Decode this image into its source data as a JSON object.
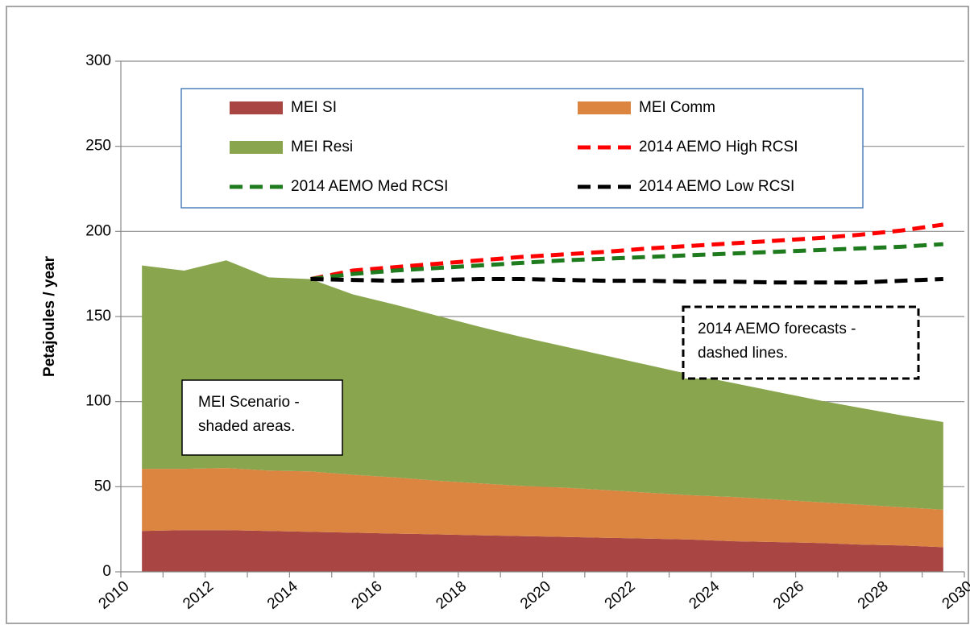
{
  "chart_data": {
    "type": "stacked-area-line",
    "y_label": "Petajoules / year",
    "x": [
      2010.5,
      2011.5,
      2012.5,
      2013.5,
      2014.5,
      2015.5,
      2016.5,
      2017.5,
      2018.5,
      2019.5,
      2020.5,
      2021.5,
      2022.5,
      2023.5,
      2024.5,
      2025.5,
      2026.5,
      2027.5,
      2028.5,
      2029.5
    ],
    "xlim": [
      2010,
      2030
    ],
    "xticks": [
      2010,
      2012,
      2014,
      2016,
      2018,
      2020,
      2022,
      2024,
      2026,
      2028,
      2030
    ],
    "ylim": [
      0,
      300
    ],
    "yticks": [
      0,
      50,
      100,
      150,
      200,
      250,
      300
    ],
    "grid": true,
    "series": [
      {
        "name": "MEI SI",
        "kind": "area",
        "color": "#a94643",
        "values": [
          24,
          24.5,
          24.5,
          24,
          23.5,
          23,
          22.5,
          22,
          21.5,
          21,
          20.5,
          20,
          19.5,
          19,
          18,
          17.5,
          17,
          16,
          15.5,
          14.5
        ]
      },
      {
        "name": "MEI Comm",
        "kind": "area",
        "color": "#dc8541",
        "values": [
          36.5,
          36,
          36.5,
          35.5,
          35.5,
          34,
          33,
          31.5,
          30.5,
          29.5,
          29,
          28,
          27,
          26,
          26,
          25,
          24,
          23.5,
          22.5,
          22
        ]
      },
      {
        "name": "MEI Resi",
        "kind": "area",
        "color": "#89a64f",
        "values": [
          119.5,
          116.5,
          122,
          113.5,
          113,
          106,
          101.5,
          97,
          92,
          87.5,
          83,
          79,
          75,
          71,
          67,
          63.5,
          60,
          57,
          54,
          51.5
        ]
      },
      {
        "name": "2014 AEMO High RCSI",
        "kind": "line",
        "color": "#ff0000",
        "values": [
          null,
          null,
          null,
          null,
          172,
          177,
          179,
          181,
          183,
          185,
          186.5,
          188,
          190,
          191.5,
          193,
          194.5,
          196,
          198,
          200.5,
          204
        ]
      },
      {
        "name": "2014 AEMO Med RCSI",
        "kind": "line",
        "color": "#1e7b1e",
        "values": [
          null,
          null,
          null,
          null,
          172,
          175,
          177,
          178.5,
          180,
          181.5,
          183,
          184,
          185,
          186,
          187,
          188,
          189,
          190,
          191,
          192.5
        ]
      },
      {
        "name": "2014 AEMO Low RCSI",
        "kind": "line",
        "color": "#000000",
        "values": [
          null,
          null,
          null,
          null,
          172,
          171.5,
          171,
          171.5,
          172,
          172,
          171.5,
          171,
          171,
          170.5,
          170.5,
          170,
          170,
          170,
          171,
          172
        ]
      }
    ],
    "annotations": [
      "MEI Scenario -",
      "shaded areas.",
      "2014 AEMO forecasts -",
      "dashed lines."
    ]
  }
}
